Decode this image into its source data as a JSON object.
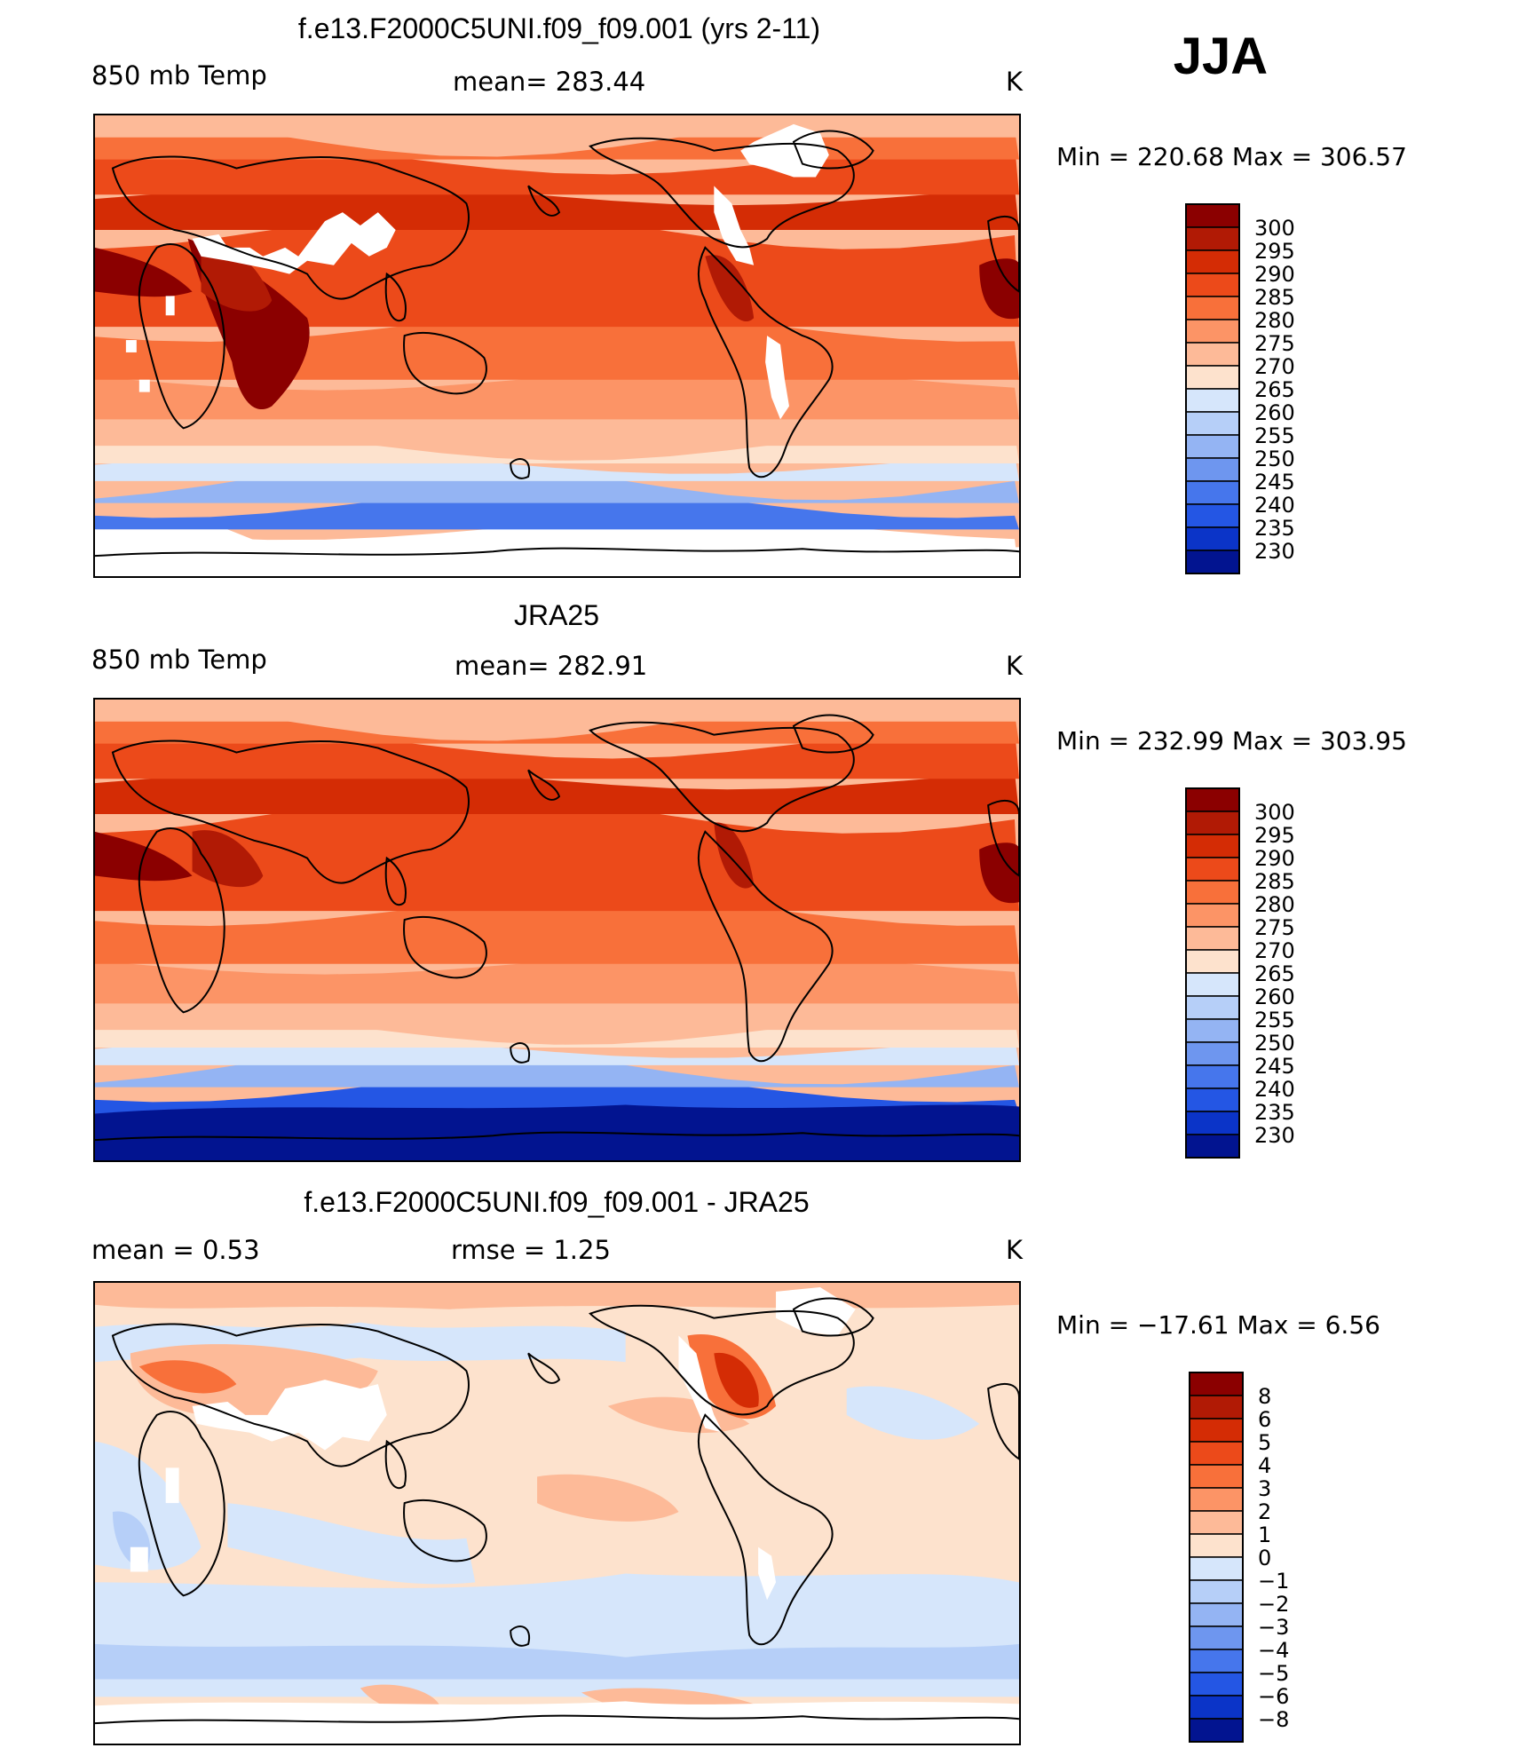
{
  "season": "JJA",
  "panels": [
    {
      "title": "f.e13.F2000C5UNI.f09_f09.001 (yrs 2-11)",
      "left_label": "850 mb Temp",
      "center_label": "mean= 283.44",
      "units": "K",
      "minmax": "Min  =  220.68  Max  =  306.57",
      "colorbar": {
        "labels": [
          "300",
          "295",
          "290",
          "285",
          "280",
          "275",
          "270",
          "265",
          "260",
          "255",
          "250",
          "245",
          "240",
          "235",
          "230"
        ],
        "colors": [
          "#8b0000",
          "#b11a05",
          "#d42c05",
          "#ec4a1a",
          "#f8703a",
          "#fc9466",
          "#fdba98",
          "#fde2cd",
          "#d6e6fb",
          "#b6cff8",
          "#94b4f3",
          "#6e96ef",
          "#4676ec",
          "#2456e4",
          "#0b34c8",
          "#021490"
        ]
      },
      "map_colors": {
        "bands": [
          "#ffffff",
          "#4676ec",
          "#94b4f3",
          "#d6e6fb",
          "#fde2cd",
          "#fdba98",
          "#fc9466",
          "#f8703a",
          "#ec4a1a",
          "#d42c05",
          "#ec4a1a",
          "#f8703a",
          "#fdba98"
        ],
        "hot": "#8b0000",
        "warm": "#b11a05"
      }
    },
    {
      "title": "JRA25",
      "left_label": "850 mb Temp",
      "center_label": "mean= 282.91",
      "units": "K",
      "minmax": "Min  =  232.99  Max  =  303.95",
      "colorbar": {
        "labels": [
          "300",
          "295",
          "290",
          "285",
          "280",
          "275",
          "270",
          "265",
          "260",
          "255",
          "250",
          "245",
          "240",
          "235",
          "230"
        ],
        "colors": [
          "#8b0000",
          "#b11a05",
          "#d42c05",
          "#ec4a1a",
          "#f8703a",
          "#fc9466",
          "#fdba98",
          "#fde2cd",
          "#d6e6fb",
          "#b6cff8",
          "#94b4f3",
          "#6e96ef",
          "#4676ec",
          "#2456e4",
          "#0b34c8",
          "#021490"
        ]
      },
      "map_colors": {
        "bands": [
          "#0b34c8",
          "#2456e4",
          "#94b4f3",
          "#d6e6fb",
          "#fde2cd",
          "#fdba98",
          "#fc9466",
          "#f8703a",
          "#ec4a1a",
          "#d42c05",
          "#ec4a1a",
          "#f8703a",
          "#fdba98"
        ],
        "hot": "#8b0000",
        "warm": "#b11a05"
      }
    },
    {
      "title": "f.e13.F2000C5UNI.f09_f09.001 - JRA25",
      "left_label": "mean =      0.53",
      "center_label": "rmse =      1.25",
      "units": "K",
      "minmax": "Min  =  −17.61  Max  =      6.56",
      "colorbar": {
        "labels": [
          "8",
          "6",
          "5",
          "4",
          "3",
          "2",
          "1",
          "0",
          "−1",
          "−2",
          "−3",
          "−4",
          "−5",
          "−6",
          "−8"
        ],
        "colors": [
          "#8b0000",
          "#b11a05",
          "#d42c05",
          "#ec4a1a",
          "#f8703a",
          "#fc9466",
          "#fdba98",
          "#fde2cd",
          "#d6e6fb",
          "#b6cff8",
          "#94b4f3",
          "#6e96ef",
          "#4676ec",
          "#2456e4",
          "#0b34c8",
          "#021490"
        ]
      },
      "map_colors": {
        "base": "#fde2cd",
        "cool": "#d6e6fb",
        "cooler": "#b6cff8",
        "warm": "#fdba98",
        "warmer": "#f8703a",
        "hot": "#d42c05"
      }
    }
  ]
}
